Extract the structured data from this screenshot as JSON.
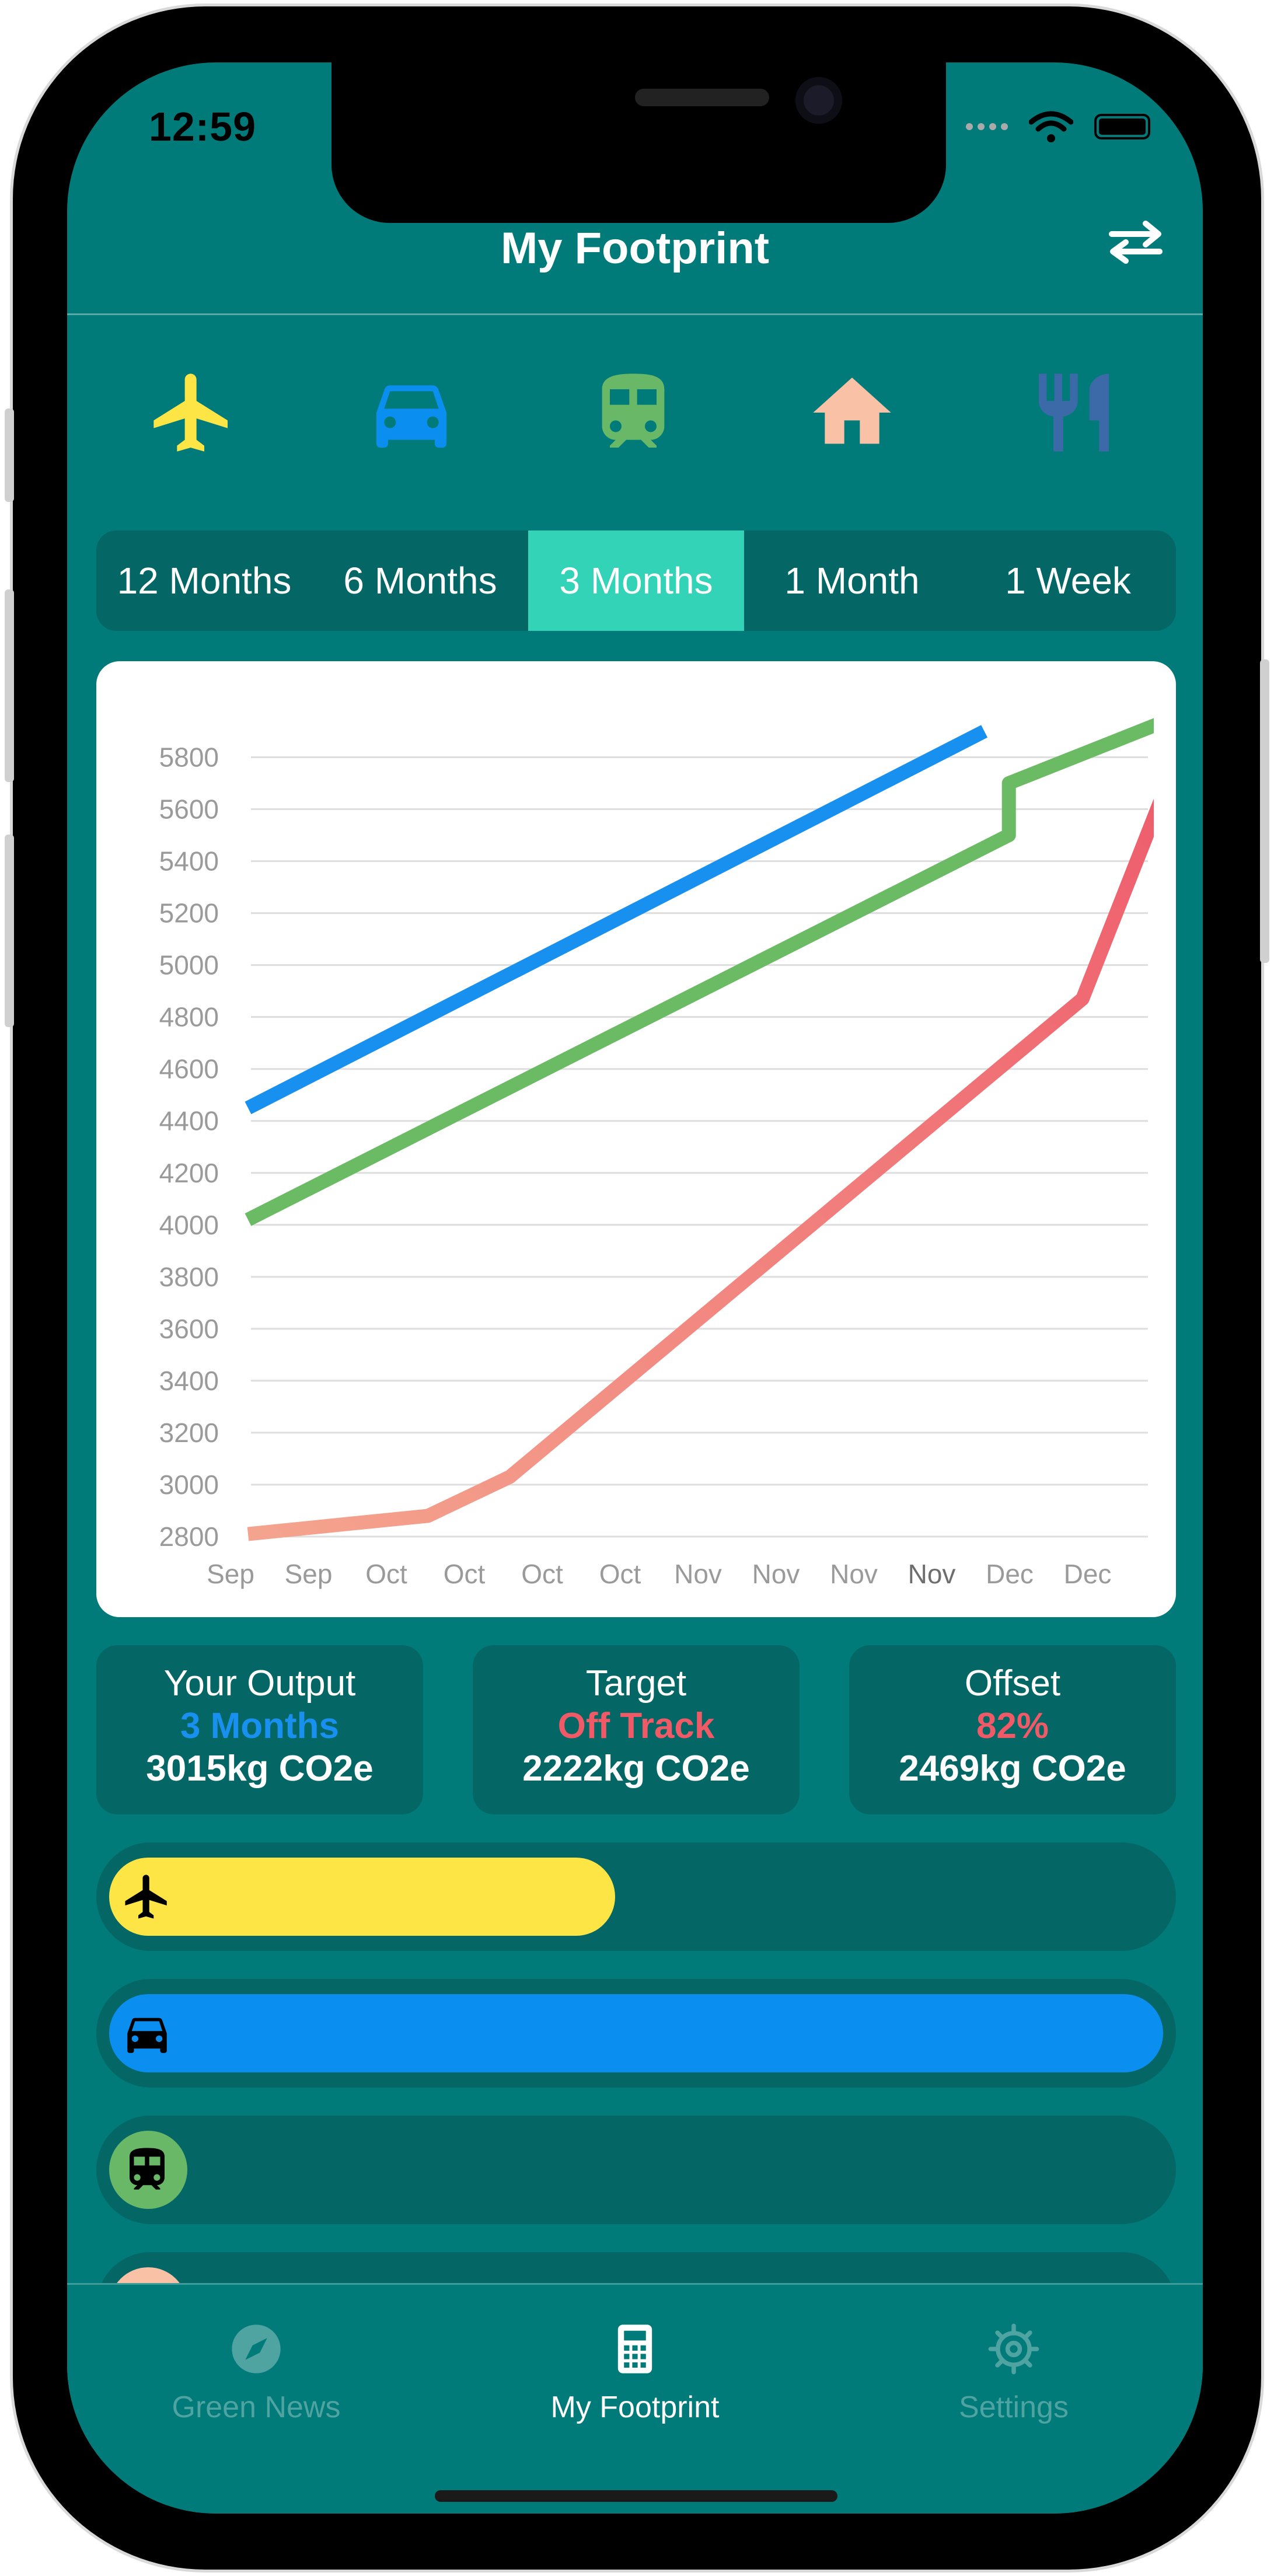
{
  "status_bar": {
    "time": "12:59"
  },
  "nav": {
    "title": "My Footprint",
    "swap_icon": "swap-arrows-icon"
  },
  "categories": [
    {
      "name": "flights",
      "icon": "airplane-icon",
      "color": "#fde546"
    },
    {
      "name": "car",
      "icon": "car-icon",
      "color": "#0a8ff0"
    },
    {
      "name": "train",
      "icon": "train-icon",
      "color": "#69b867"
    },
    {
      "name": "home",
      "icon": "home-icon",
      "color": "#f9c1a6"
    },
    {
      "name": "food",
      "icon": "fork-knife-icon",
      "color": "#3c6aa8"
    }
  ],
  "periods": [
    "12 Months",
    "6 Months",
    "3 Months",
    "1 Month",
    "1 Week"
  ],
  "selected_period": "3 Months",
  "chart_data": {
    "type": "line",
    "x": [
      "Sep",
      "Sep",
      "Oct",
      "Oct",
      "Oct",
      "Oct",
      "Nov",
      "Nov",
      "Nov",
      "Nov",
      "Dec",
      "Dec"
    ],
    "ylim": [
      2800,
      5900
    ],
    "yticks": [
      2800,
      3000,
      3200,
      3400,
      3600,
      3800,
      4000,
      4200,
      4400,
      4600,
      4800,
      5000,
      5200,
      5400,
      5600,
      5800
    ],
    "grid": true,
    "series": [
      {
        "color": "#1890f0",
        "points": [
          [
            0,
            4450
          ],
          [
            9,
            5900
          ]
        ]
      },
      {
        "color": "#6abb64",
        "points": [
          [
            0,
            4020
          ],
          [
            9.3,
            5500
          ],
          [
            9.3,
            5700
          ],
          [
            11.3,
            5950
          ]
        ]
      },
      {
        "color": "#f4a48e",
        "color_end": "#ee5c6c",
        "points": [
          [
            0,
            2810
          ],
          [
            2.2,
            2880
          ],
          [
            3.2,
            3030
          ],
          [
            10.2,
            4870
          ],
          [
            11.3,
            5750
          ]
        ]
      }
    ]
  },
  "stats": [
    {
      "label": "Your Output",
      "sub": "3 Months",
      "sub_color": "#1890f0",
      "value": "3015kg CO2e"
    },
    {
      "label": "Target",
      "sub": "Off Track",
      "sub_color": "#ef5a66",
      "value": "2222kg CO2e"
    },
    {
      "label": "Offset",
      "sub": "82%",
      "sub_color": "#ef5a66",
      "value": "2469kg CO2e"
    }
  ],
  "breakdown": [
    {
      "icon": "airplane-icon",
      "color": "#fde546",
      "fraction": 0.48
    },
    {
      "icon": "car-icon",
      "color": "#0a8ff0",
      "fraction": 1.0
    },
    {
      "icon": "train-icon",
      "color": "#69b867",
      "fraction": 0.0
    },
    {
      "icon": "home-icon",
      "color": "#f9c1a6",
      "fraction": 0.0
    }
  ],
  "tabs": [
    {
      "label": "Green News",
      "icon": "compass-icon",
      "active": false
    },
    {
      "label": "My Footprint",
      "icon": "calculator-icon",
      "active": true
    },
    {
      "label": "Settings",
      "icon": "gear-icon",
      "active": false
    }
  ],
  "colors": {
    "background": "#007b7a",
    "card": "#046766",
    "segment_active": "#33d3b7"
  }
}
